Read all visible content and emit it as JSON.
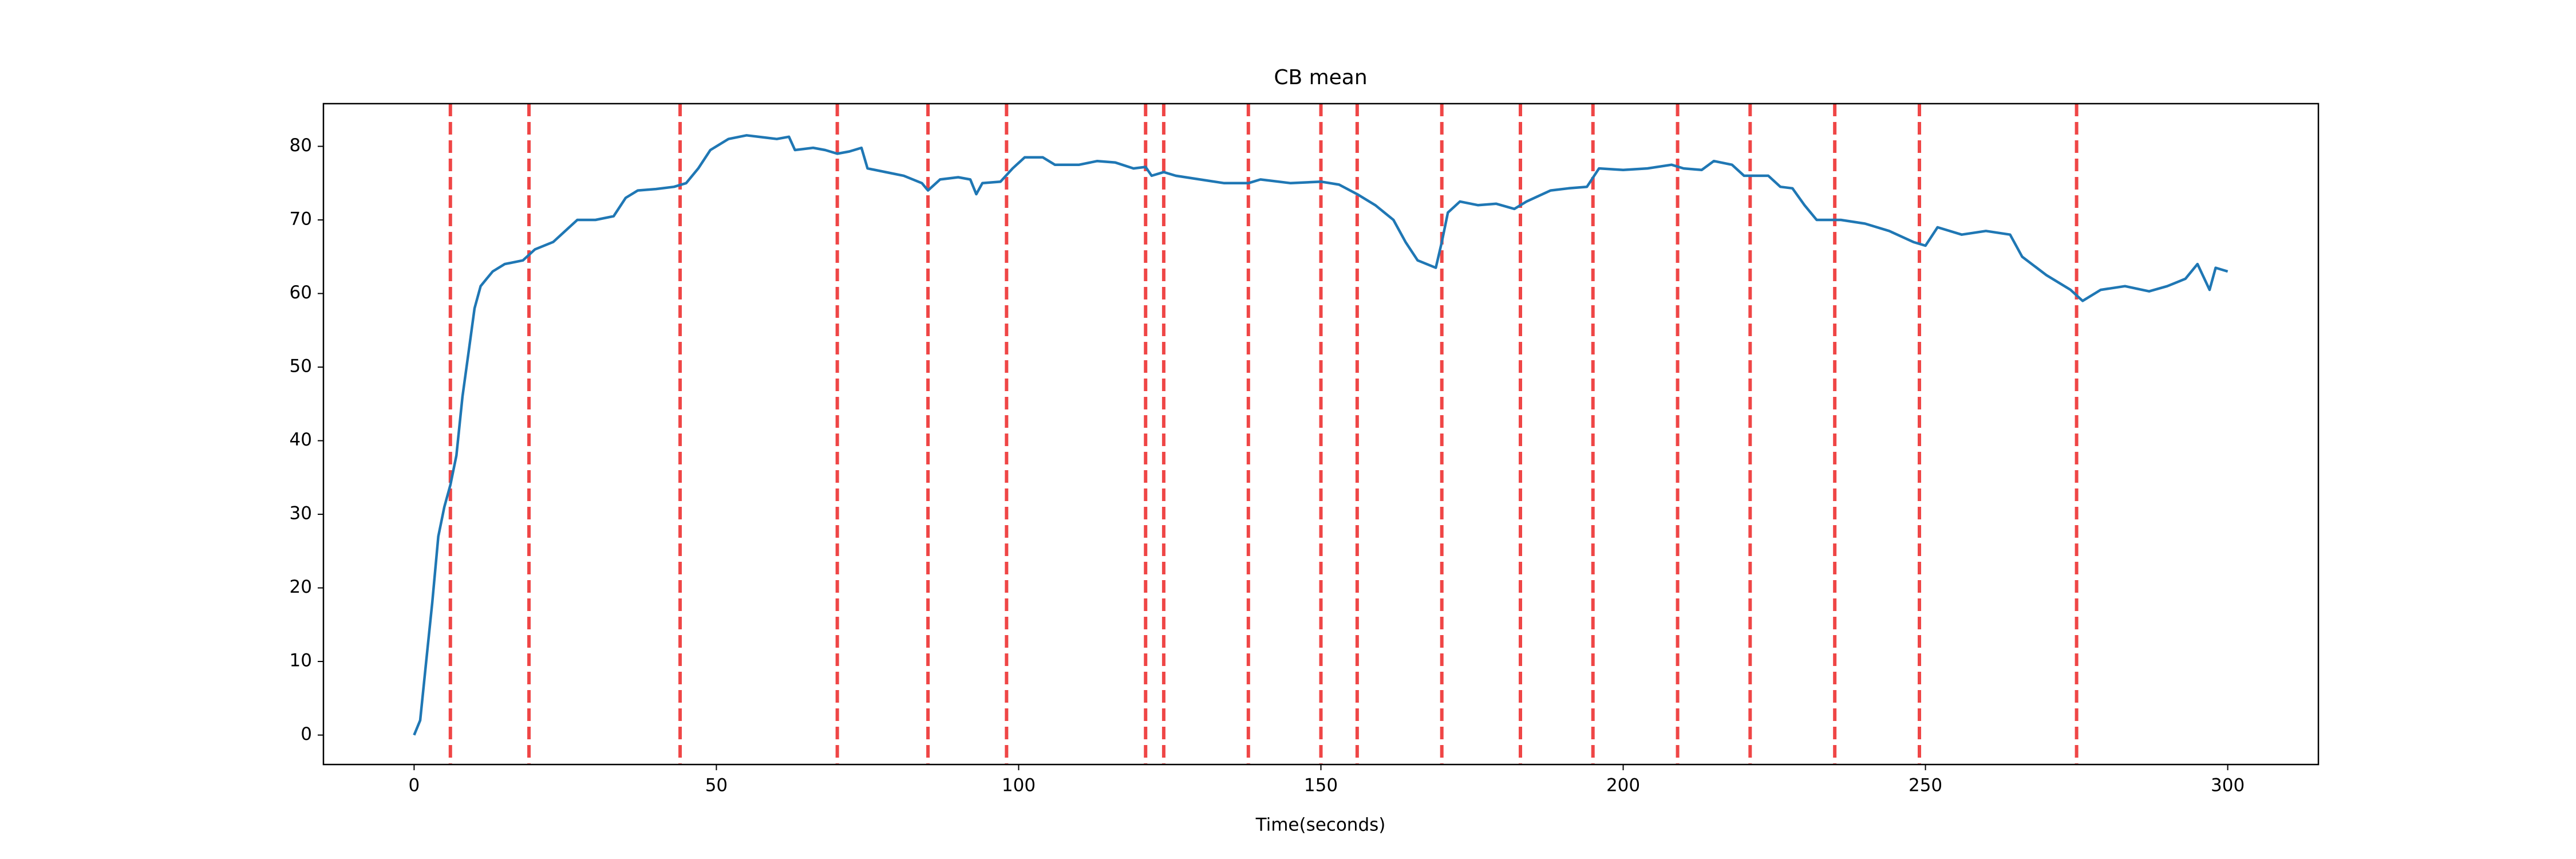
{
  "chart_data": {
    "type": "line",
    "title": "CB mean",
    "x_label": "Time(seconds)",
    "x": [
      0,
      1,
      2,
      3,
      4,
      5,
      6,
      7,
      8,
      9,
      10,
      11,
      12,
      13,
      15,
      18,
      20,
      23,
      25,
      27,
      30,
      33,
      35,
      37,
      40,
      43,
      45,
      47,
      49,
      52,
      55,
      58,
      60,
      62,
      63,
      66,
      68,
      70,
      72,
      74,
      75,
      78,
      81,
      84,
      85,
      87,
      90,
      92,
      93,
      94,
      97,
      99,
      101,
      104,
      106,
      110,
      113,
      116,
      119,
      121,
      122,
      124,
      126,
      130,
      134,
      138,
      140,
      145,
      150,
      153,
      156,
      159,
      162,
      164,
      166,
      169,
      170,
      171,
      173,
      176,
      179,
      182,
      184,
      188,
      191,
      194,
      196,
      200,
      204,
      208,
      210,
      213,
      215,
      218,
      220,
      224,
      226,
      228,
      230,
      232,
      236,
      240,
      244,
      248,
      250,
      252,
      256,
      260,
      264,
      266,
      270,
      274,
      276,
      279,
      283,
      287,
      290,
      293,
      295,
      297,
      298,
      300
    ],
    "values": [
      0,
      2,
      10,
      18,
      27,
      31,
      34,
      38,
      46,
      52,
      58,
      61,
      62,
      63,
      64,
      64.5,
      66,
      67,
      68.5,
      70,
      70,
      70.5,
      73,
      74,
      74.2,
      74.5,
      75,
      77,
      79.5,
      81,
      81.5,
      81.2,
      81,
      81.3,
      79.5,
      79.8,
      79.5,
      79,
      79.3,
      79.8,
      77,
      76.5,
      76,
      75,
      74,
      75.5,
      75.8,
      75.5,
      73.5,
      75,
      75.2,
      77,
      78.5,
      78.5,
      77.5,
      77.5,
      78,
      77.8,
      77,
      77.2,
      76,
      76.5,
      76,
      75.5,
      75,
      75,
      75.5,
      75,
      75.2,
      74.8,
      73.5,
      72,
      70,
      67,
      64.5,
      63.5,
      67,
      71,
      72.5,
      72,
      72.2,
      71.5,
      72.5,
      74,
      74.3,
      74.5,
      77,
      76.8,
      77,
      77.5,
      77,
      76.8,
      78,
      77.5,
      76,
      76,
      74.5,
      74.3,
      72,
      70,
      70,
      69.5,
      68.5,
      67,
      66.5,
      69,
      68,
      68.5,
      68,
      65,
      62.5,
      60.5,
      59,
      60.5,
      61,
      60.3,
      61,
      62,
      64,
      60.5,
      63.5,
      63
    ],
    "color": "#1f77b4",
    "vlines": [
      6,
      19,
      44,
      70,
      85,
      98,
      121,
      124,
      138,
      150,
      156,
      170,
      183,
      195,
      209,
      221,
      235,
      249,
      275
    ],
    "vline_color": "#ee3333",
    "xlim": [
      -15,
      315
    ],
    "xticks": [
      0,
      50,
      100,
      150,
      200,
      250,
      300
    ],
    "ylim": [
      -4,
      85.8
    ],
    "yticks": [
      0,
      10,
      20,
      30,
      40,
      50,
      60,
      70,
      80
    ],
    "grid": false
  }
}
